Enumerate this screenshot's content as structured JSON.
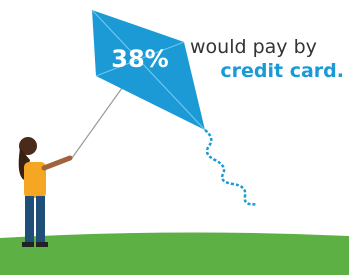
{
  "kite": {
    "label": "38%"
  },
  "caption": {
    "line1": "would pay by",
    "line2": "credit card."
  }
}
